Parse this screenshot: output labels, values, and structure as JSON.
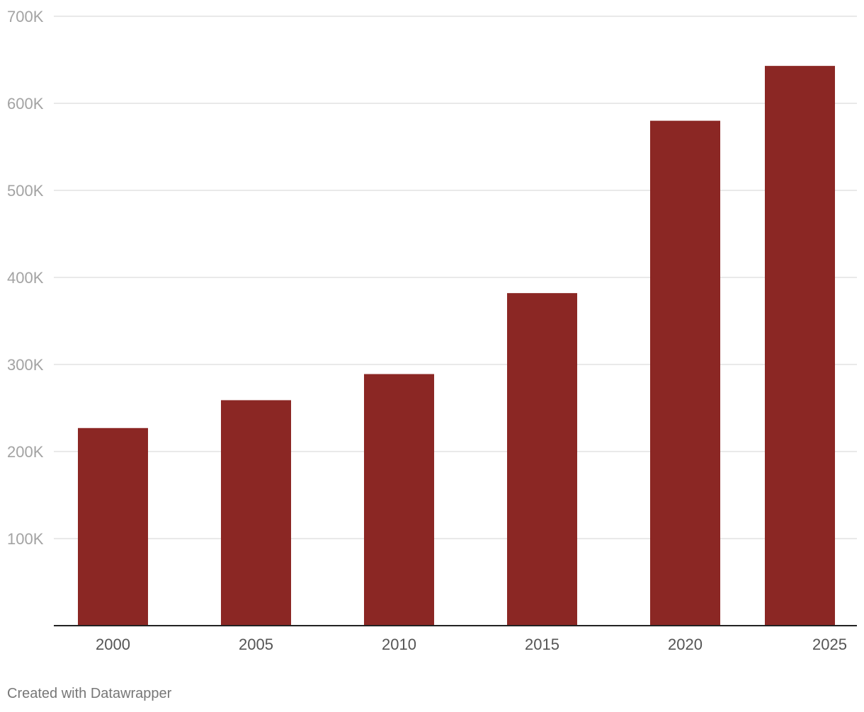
{
  "chart_data": {
    "type": "bar",
    "categories": [
      "2000",
      "2005",
      "2010",
      "2015",
      "2020",
      "2025"
    ],
    "values": [
      227000,
      259000,
      289000,
      382000,
      580000,
      643000
    ],
    "ylim": [
      0,
      700000
    ],
    "yticks": [
      100000,
      200000,
      300000,
      400000,
      500000,
      600000,
      700000
    ],
    "ytick_labels": [
      "100K",
      "200K",
      "300K",
      "400K",
      "500K",
      "600K",
      "700K"
    ],
    "bar_color": "#8b2724",
    "grid": true,
    "title": "",
    "xlabel": "",
    "ylabel": ""
  },
  "footer": {
    "credit": "Created with Datawrapper"
  }
}
